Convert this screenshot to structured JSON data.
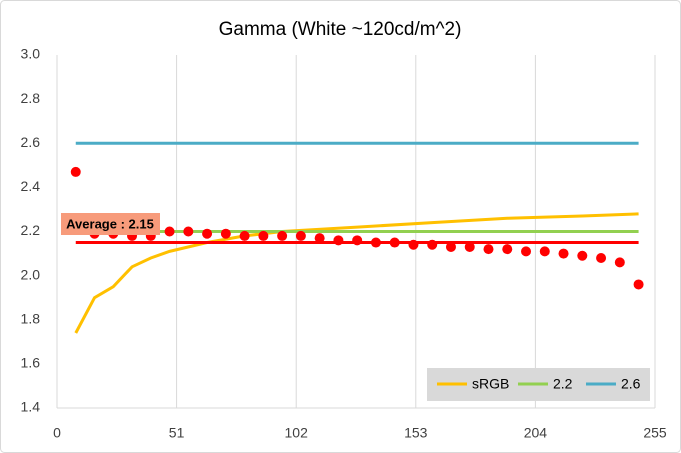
{
  "chart_data": {
    "type": "line",
    "title": "Gamma (White ~120cd/m^2)",
    "xlim": [
      0,
      255
    ],
    "xticks": [
      0,
      51,
      102,
      153,
      204,
      255
    ],
    "ylim": [
      1.4,
      3.0
    ],
    "yticks": [
      1.4,
      1.6,
      1.8,
      {
        "value": 2,
        "label": "2.0"
      },
      2.2,
      2.4,
      2.6,
      2.8,
      {
        "value": 3,
        "label": "3.0"
      }
    ],
    "grid": "x",
    "legend": "bottom-right",
    "series": [
      {
        "name": "sRGB",
        "color": "#ffc000",
        "x": [
          8,
          16,
          24,
          32,
          40,
          48,
          64,
          80,
          96,
          128,
          160,
          192,
          224,
          248
        ],
        "values": [
          1.74,
          1.9,
          1.95,
          2.04,
          2.08,
          2.11,
          2.15,
          2.18,
          2.2,
          2.22,
          2.24,
          2.26,
          2.27,
          2.28
        ]
      },
      {
        "name": "2.2",
        "color": "#92d050",
        "x": [
          8,
          248
        ],
        "values": [
          2.2,
          2.2
        ]
      },
      {
        "name": "2.6",
        "color": "#4bacc6",
        "x": [
          8,
          248
        ],
        "values": [
          2.6,
          2.6
        ]
      }
    ],
    "measured": {
      "color": "#ff0000",
      "x": [
        8,
        16,
        24,
        32,
        40,
        48,
        56,
        64,
        72,
        80,
        88,
        96,
        104,
        112,
        120,
        128,
        136,
        144,
        152,
        160,
        168,
        176,
        184,
        192,
        200,
        208,
        216,
        224,
        232,
        240,
        248
      ],
      "values": [
        2.47,
        2.19,
        2.19,
        2.18,
        2.18,
        2.2,
        2.2,
        2.19,
        2.19,
        2.18,
        2.18,
        2.18,
        2.18,
        2.17,
        2.16,
        2.16,
        2.15,
        2.15,
        2.14,
        2.14,
        2.13,
        2.13,
        2.12,
        2.12,
        2.11,
        2.11,
        2.1,
        2.09,
        2.08,
        2.06,
        1.96
      ]
    },
    "average": {
      "label": "Average : 2.15",
      "value": 2.15,
      "color": "#ff0000",
      "label_color": "#f79b7b"
    }
  }
}
